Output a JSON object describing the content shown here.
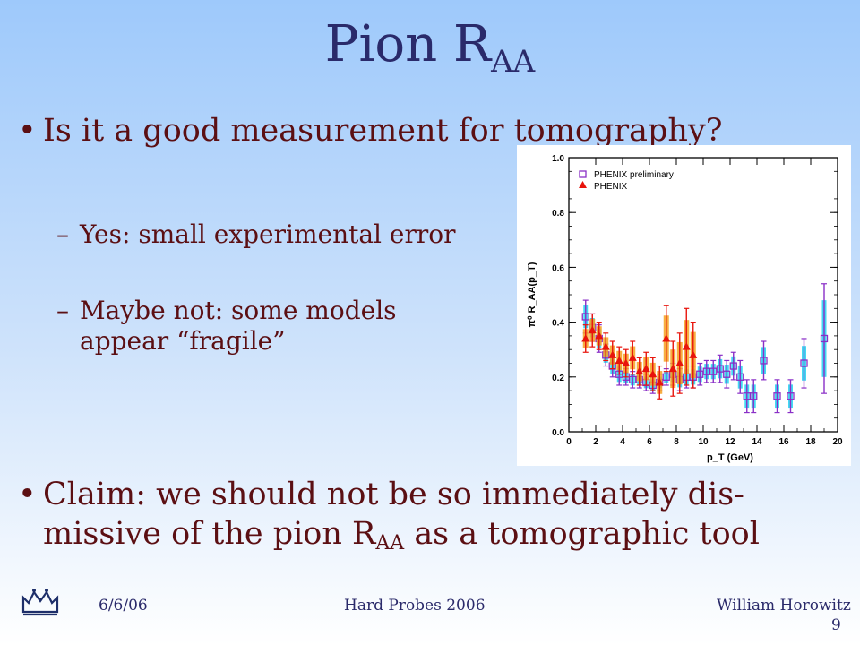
{
  "slide": {
    "title_main": "Pion R",
    "title_sub": "AA",
    "bullet1": "Is it a good measurement for tomography?",
    "sub1": "Yes: small experimental error",
    "sub2_line1": "Maybe not: some models",
    "sub2_line2": "appear “fragile”",
    "bullet2_line1": "Claim: we should not be so immediately dis-",
    "bullet2_line2_a": "missive of the pion R",
    "bullet2_line2_sub": "AA",
    "bullet2_line2_b": " as a tomographic tool"
  },
  "footer": {
    "date": "6/6/06",
    "event": "Hard Probes 2006",
    "author": "William Horowitz",
    "page": "9"
  },
  "chart_data": {
    "type": "scatter",
    "xlabel": "p_T (GeV)",
    "ylabel": "π⁰ R_AA(p_T)",
    "xlim": [
      0,
      20
    ],
    "ylim": [
      0,
      1.0
    ],
    "xticks": [
      "0",
      "2",
      "4",
      "6",
      "8",
      "10",
      "12",
      "14",
      "16",
      "18",
      "20"
    ],
    "yticks": [
      "0.0",
      "0.2",
      "0.4",
      "0.6",
      "0.8",
      "1.0"
    ],
    "legend": [
      "PHENIX preliminary",
      "PHENIX"
    ],
    "legend_position": "top-left",
    "series": [
      {
        "name": "PHENIX preliminary",
        "marker": "open-square",
        "color": "#8a2fc7",
        "sys_color": "#22d4f0",
        "x": [
          1.25,
          1.75,
          2.25,
          2.75,
          3.25,
          3.75,
          4.25,
          4.75,
          5.25,
          5.75,
          6.25,
          6.75,
          7.25,
          7.75,
          8.25,
          8.75,
          9.25,
          9.75,
          10.25,
          10.75,
          11.25,
          11.75,
          12.25,
          12.75,
          13.25,
          13.75,
          14.5,
          15.5,
          16.5,
          17.5,
          19.0
        ],
        "y": [
          0.42,
          0.38,
          0.34,
          0.28,
          0.24,
          0.21,
          0.2,
          0.19,
          0.19,
          0.18,
          0.17,
          0.18,
          0.2,
          0.21,
          0.19,
          0.2,
          0.2,
          0.21,
          0.22,
          0.22,
          0.23,
          0.21,
          0.24,
          0.2,
          0.13,
          0.13,
          0.26,
          0.13,
          0.13,
          0.25,
          0.34
        ],
        "err": [
          0.06,
          0.05,
          0.05,
          0.04,
          0.04,
          0.04,
          0.03,
          0.03,
          0.03,
          0.03,
          0.03,
          0.03,
          0.03,
          0.04,
          0.04,
          0.04,
          0.04,
          0.04,
          0.04,
          0.04,
          0.05,
          0.05,
          0.05,
          0.06,
          0.06,
          0.06,
          0.07,
          0.06,
          0.06,
          0.09,
          0.2
        ]
      },
      {
        "name": "PHENIX",
        "marker": "filled-triangle",
        "color": "#e8140c",
        "sys_color": "#f6a020",
        "x": [
          1.25,
          1.75,
          2.25,
          2.75,
          3.25,
          3.75,
          4.25,
          4.75,
          5.25,
          5.75,
          6.25,
          6.75,
          7.25,
          7.75,
          8.25,
          8.75,
          9.25
        ],
        "y": [
          0.34,
          0.37,
          0.35,
          0.31,
          0.28,
          0.26,
          0.25,
          0.27,
          0.22,
          0.23,
          0.21,
          0.18,
          0.34,
          0.23,
          0.25,
          0.31,
          0.28
        ],
        "err": [
          0.05,
          0.06,
          0.05,
          0.05,
          0.05,
          0.05,
          0.05,
          0.06,
          0.05,
          0.06,
          0.06,
          0.06,
          0.12,
          0.1,
          0.11,
          0.14,
          0.12
        ]
      }
    ]
  }
}
